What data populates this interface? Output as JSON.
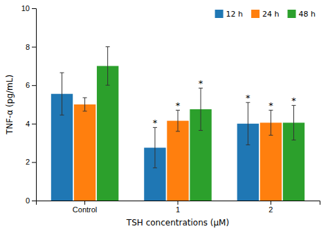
{
  "chart_data": {
    "type": "bar",
    "categories": [
      "Control",
      "1",
      "2"
    ],
    "series": [
      {
        "name": "12 h",
        "values": [
          5.55,
          2.75,
          4.0
        ],
        "errors": [
          1.1,
          1.05,
          1.1
        ]
      },
      {
        "name": "24 h",
        "values": [
          5.0,
          4.15,
          4.05
        ],
        "errors": [
          0.35,
          0.55,
          0.65
        ]
      },
      {
        "name": "48 h",
        "values": [
          7.0,
          4.75,
          4.05
        ],
        "errors": [
          1.0,
          1.1,
          0.9
        ]
      }
    ],
    "y_label": "TNF-α (pg/mL)",
    "x_label": "TSH concentrations (μM)",
    "ylim": [
      0,
      10
    ],
    "yticks": [
      0,
      2,
      4,
      6,
      8,
      10
    ],
    "grid": false,
    "legend": "upper right",
    "annotations": [
      {
        "text": "*",
        "category": "1",
        "series": "12 h"
      },
      {
        "text": "*",
        "category": "1",
        "series": "24 h"
      },
      {
        "text": "*",
        "category": "1",
        "series": "48 h"
      },
      {
        "text": "*",
        "category": "2",
        "series": "12 h"
      },
      {
        "text": "*",
        "category": "2",
        "series": "24 h"
      },
      {
        "text": "*",
        "category": "2",
        "series": "48 h"
      }
    ]
  }
}
